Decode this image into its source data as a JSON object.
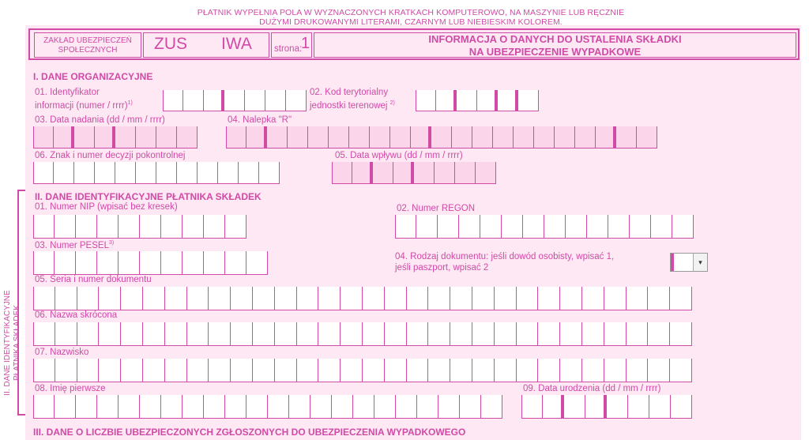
{
  "notice": {
    "line1": "PŁATNIK WYPEŁNIA POLA W WYZNACZONYCH KRATKACH KOMPUTEROWO, NA MASZYNIE LUB RĘCZNIE",
    "line2": "DUŻYMI DRUKOWANYMI LITERAMI, CZARNYM LUB NIEBIESKIM KOLOREM."
  },
  "header": {
    "zaklad_line1": "ZAKŁAD UBEZPIECZEŃ",
    "zaklad_line2": "SPOŁECZNYCH",
    "zus": "ZUS",
    "form_code": "IWA",
    "page_label": "strona:",
    "page_number": "1",
    "title_line1": "INFORMACJA O DANYCH DO USTALENIA SKŁADKI",
    "title_line2": "NA UBEZPIECZENIE WYPADKOWE"
  },
  "section1": {
    "title": "I. DANE ORGANIZACYJNE",
    "f01_line1": "01. Identyfikator",
    "f01_line2": "informacji (numer / rrrr)",
    "f01_sup": "1)",
    "f02_line1": "02. Kod terytorialny",
    "f02_line2": "jednostki terenowej",
    "f02_sup": "2)",
    "f03": "03. Data nadania (dd / mm / rrrr)",
    "f04": "04. Nalepka \"R\"",
    "f06": "06. Znak i numer decyzji pokontrolnej",
    "f05": "05. Data wpływu (dd / mm / rrrr)"
  },
  "section2": {
    "title": "II. DANE IDENTYFIKACYJNE PŁATNIKA SKŁADEK",
    "vertical_line1": "II. DANE IDENTYFIKACYJNE",
    "vertical_line2": "PŁATNIKA SKŁADEK",
    "f01": "01. Numer NIP (wpisać bez kresek)",
    "f02": "02.  Numer REGON",
    "f03": "03.  Numer PESEL",
    "f03_sup": "3)",
    "f04_line1": "04. Rodzaj dokumentu: jeśli dowód osobisty, wpisać 1,",
    "f04_line2": "jeśli paszport, wpisać 2",
    "f05": "05.  Seria i numer dokumentu",
    "f06": "06.  Nazwa  skrócona",
    "f07": "07.  Nazwisko",
    "f08": "08.  Imię  pierwsze",
    "f09": "09.  Data urodzenia (dd / mm / rrrr)"
  },
  "section3": {
    "title": "III. DANE O LICZBIE UBEZPIECZONYCH ZGŁOSZONYCH DO UBEZPIECZENIA WYPADKOWEGO"
  },
  "document_type_select": {
    "value": ""
  }
}
